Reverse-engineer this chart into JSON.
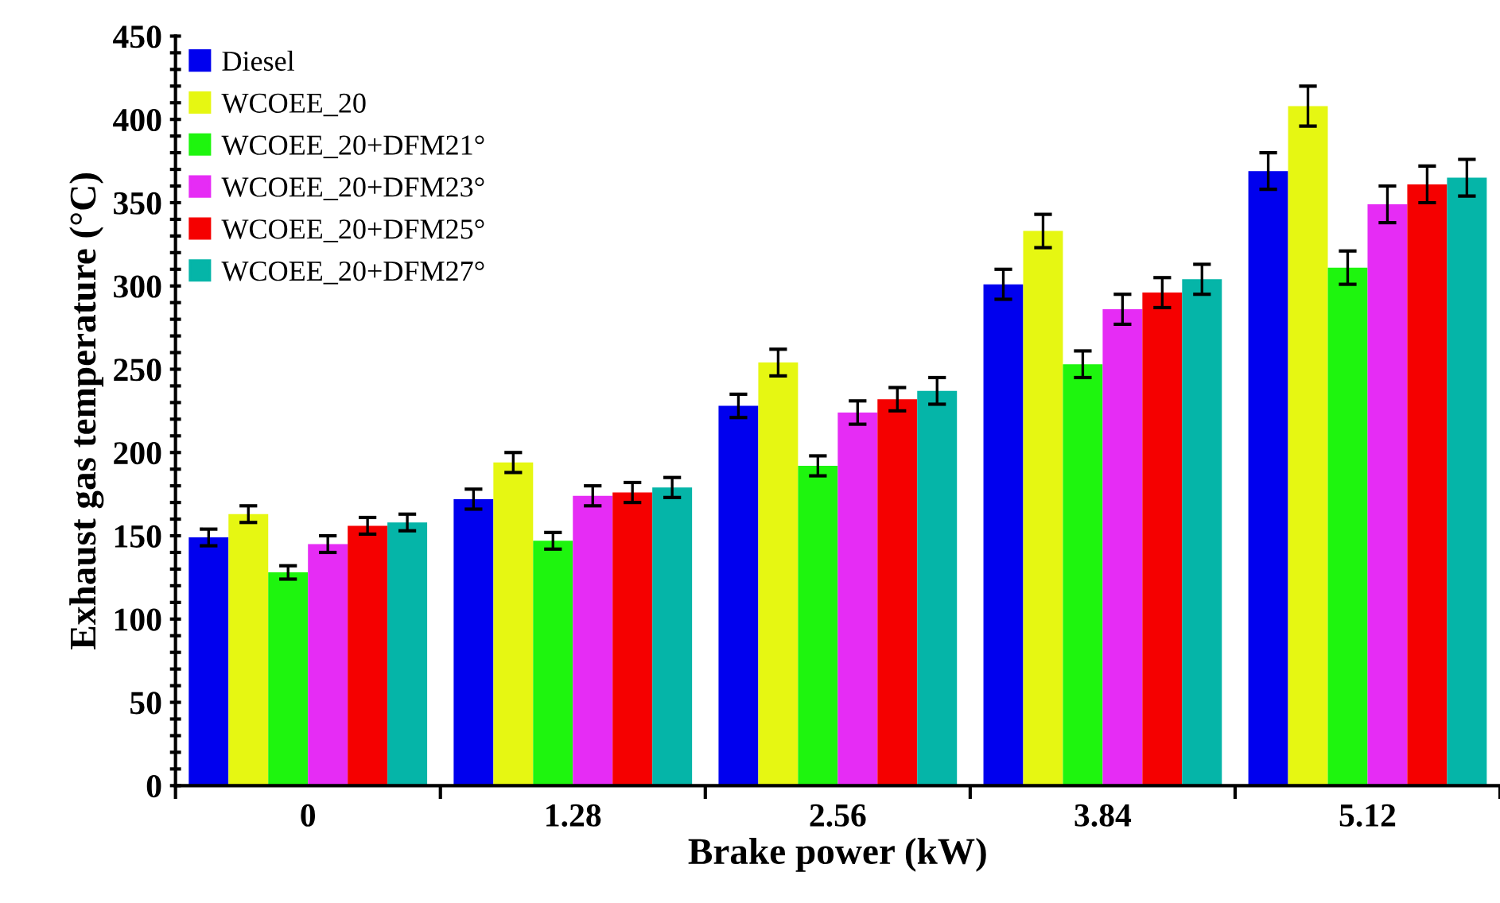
{
  "chart_data": {
    "type": "bar",
    "xlabel": "Brake power (kW)",
    "ylabel": "Exhaust gas temperature (°C)",
    "categories": [
      "0",
      "1.28",
      "2.56",
      "3.84",
      "5.12"
    ],
    "series": [
      {
        "name": "Diesel",
        "color": "#0000ee",
        "values": [
          149,
          172,
          228,
          301,
          369
        ],
        "errors": [
          5,
          6,
          7,
          9,
          11
        ]
      },
      {
        "name": "WCOEE_20",
        "color": "#e6f712",
        "values": [
          163,
          194,
          254,
          333,
          408
        ],
        "errors": [
          5,
          6,
          8,
          10,
          12
        ]
      },
      {
        "name": "WCOEE_20+DFM21°",
        "color": "#1ef50e",
        "values": [
          128,
          147,
          192,
          253,
          311
        ],
        "errors": [
          4,
          5,
          6,
          8,
          10
        ]
      },
      {
        "name": "WCOEE_20+DFM23°",
        "color": "#e62cf5",
        "values": [
          145,
          174,
          224,
          286,
          349
        ],
        "errors": [
          5,
          6,
          7,
          9,
          11
        ]
      },
      {
        "name": "WCOEE_20+DFM25°",
        "color": "#f50000",
        "values": [
          156,
          176,
          232,
          296,
          361
        ],
        "errors": [
          5,
          6,
          7,
          9,
          11
        ]
      },
      {
        "name": "WCOEE_20+DFM27°",
        "color": "#05b5a8",
        "values": [
          158,
          179,
          237,
          304,
          365
        ],
        "errors": [
          5,
          6,
          8,
          9,
          11
        ]
      }
    ],
    "ylim": [
      0,
      450
    ],
    "yticks": [
      0,
      {
        "value": 10,
        "label": null
      },
      {
        "value": 20,
        "label": null
      },
      {
        "value": 30,
        "label": null
      },
      {
        "value": 40,
        "label": null
      },
      50,
      {
        "value": 60,
        "label": null
      },
      {
        "value": 70,
        "label": null
      },
      {
        "value": 80,
        "label": null
      },
      {
        "value": 90,
        "label": null
      },
      100,
      {
        "value": 110,
        "label": null
      },
      {
        "value": 120,
        "label": null
      },
      {
        "value": 130,
        "label": null
      },
      {
        "value": 140,
        "label": null
      },
      150,
      {
        "value": 160,
        "label": null
      },
      {
        "value": 170,
        "label": null
      },
      {
        "value": 180,
        "label": null
      },
      {
        "value": 190,
        "label": null
      },
      200,
      {
        "value": 210,
        "label": null
      },
      {
        "value": 220,
        "label": null
      },
      {
        "value": 230,
        "label": null
      },
      {
        "value": 240,
        "label": null
      },
      250,
      {
        "value": 260,
        "label": null
      },
      {
        "value": 270,
        "label": null
      },
      {
        "value": 280,
        "label": null
      },
      {
        "value": 290,
        "label": null
      },
      300,
      {
        "value": 310,
        "label": null
      },
      {
        "value": 320,
        "label": null
      },
      {
        "value": 330,
        "label": null
      },
      {
        "value": 340,
        "label": null
      },
      350,
      {
        "value": 360,
        "label": null
      },
      {
        "value": 370,
        "label": null
      },
      {
        "value": 380,
        "label": null
      },
      {
        "value": 390,
        "label": null
      },
      400,
      {
        "value": 410,
        "label": null
      },
      {
        "value": 420,
        "label": null
      },
      {
        "value": 430,
        "label": null
      },
      {
        "value": 440,
        "label": null
      },
      450
    ],
    "grid": false,
    "legend": "top left"
  }
}
